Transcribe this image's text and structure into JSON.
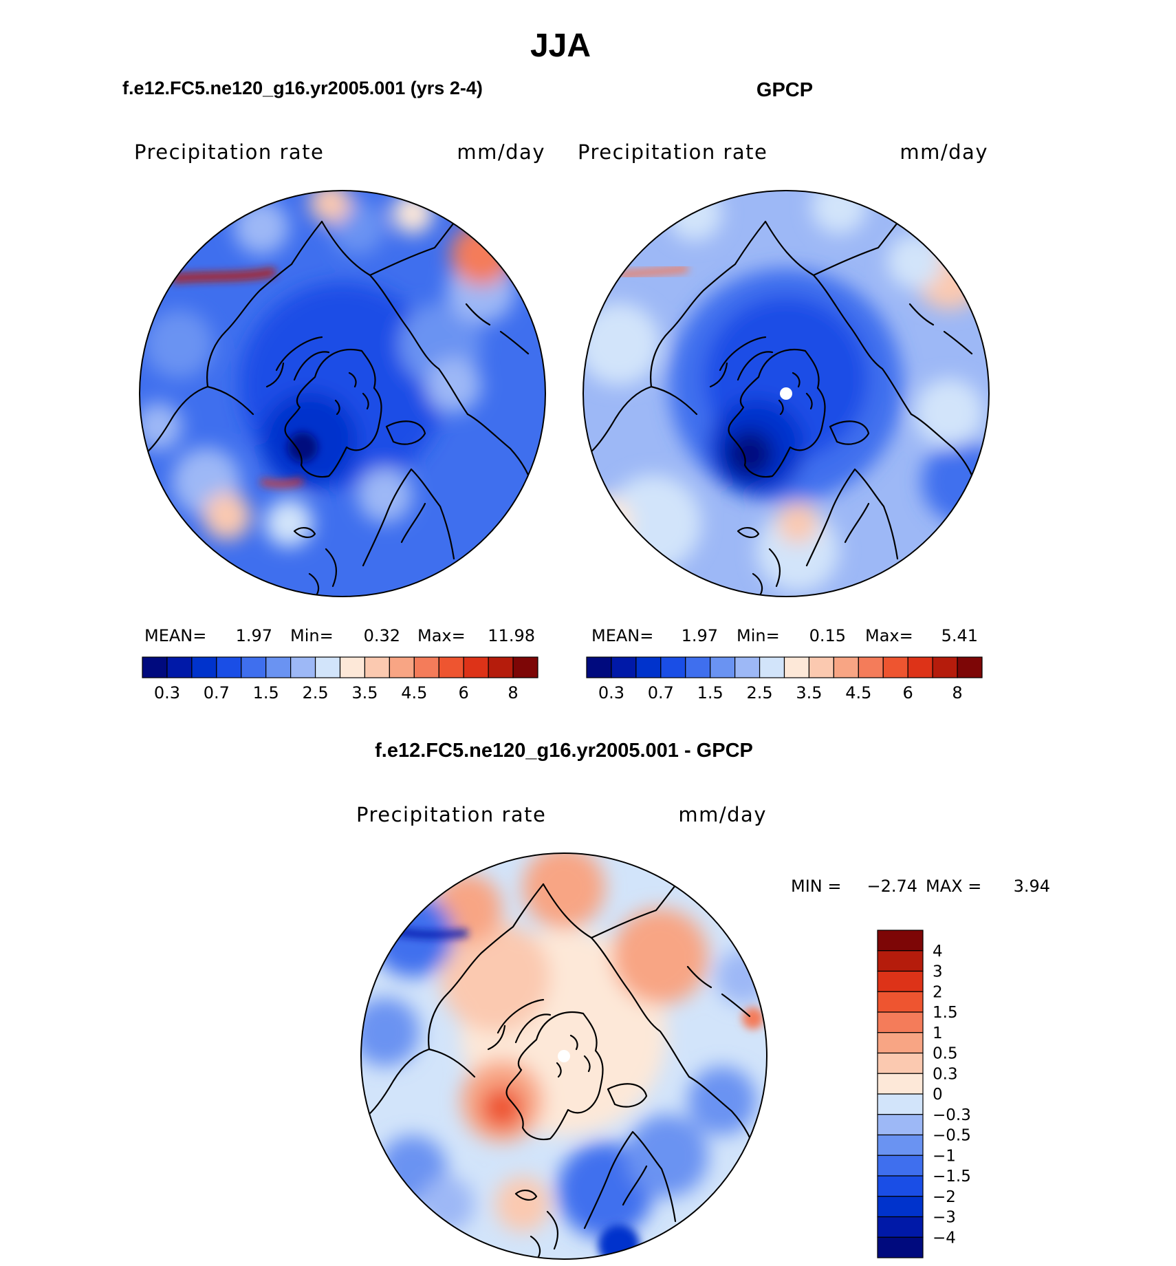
{
  "main_title": "JJA",
  "chart_data": [
    {
      "type": "heatmap",
      "projection": "north polar stereographic",
      "case_title": "f.e12.FC5.ne120_g16.yr2005.001 (yrs 2-4)",
      "variable": "Precipitation rate",
      "units": "mm/day",
      "stats": {
        "mean_label": "MEAN=",
        "mean": "1.97",
        "min_label": "Min=",
        "min": "0.32",
        "max_label": "Max=",
        "max": "11.98"
      },
      "levels": [
        "0.2",
        "0.3",
        "0.5",
        "0.7",
        "1",
        "1.5",
        "2",
        "2.5",
        "3",
        "3.5",
        "4",
        "4.5",
        "5",
        "6",
        "7",
        "8"
      ],
      "colorbar_ticks": [
        "0.3",
        "0.7",
        "1.5",
        "2.5",
        "3.5",
        "4.5",
        "6",
        "8"
      ],
      "palette": [
        "#000a7e",
        "#0019a8",
        "#0033cc",
        "#1a4ee6",
        "#3f6fee",
        "#6a93f2",
        "#9db8f6",
        "#d2e4fa",
        "#fde8d8",
        "#fbc9b0",
        "#f8a584",
        "#f47c5a",
        "#ee5530",
        "#dd3318",
        "#b51c0c",
        "#7d0606"
      ]
    },
    {
      "type": "heatmap",
      "projection": "north polar stereographic",
      "case_title": "GPCP",
      "variable": "Precipitation rate",
      "units": "mm/day",
      "stats": {
        "mean_label": "MEAN=",
        "mean": "1.97",
        "min_label": "Min=",
        "min": "0.15",
        "max_label": "Max=",
        "max": "5.41"
      },
      "levels": [
        "0.2",
        "0.3",
        "0.5",
        "0.7",
        "1",
        "1.5",
        "2",
        "2.5",
        "3",
        "3.5",
        "4",
        "4.5",
        "5",
        "6",
        "7",
        "8"
      ],
      "colorbar_ticks": [
        "0.3",
        "0.7",
        "1.5",
        "2.5",
        "3.5",
        "4.5",
        "6",
        "8"
      ],
      "palette": [
        "#000a7e",
        "#0019a8",
        "#0033cc",
        "#1a4ee6",
        "#3f6fee",
        "#6a93f2",
        "#9db8f6",
        "#d2e4fa",
        "#fde8d8",
        "#fbc9b0",
        "#f8a584",
        "#f47c5a",
        "#ee5530",
        "#dd3318",
        "#b51c0c",
        "#7d0606"
      ]
    },
    {
      "type": "heatmap",
      "projection": "north polar stereographic",
      "case_title": "f.e12.FC5.ne120_g16.yr2005.001 - GPCP",
      "variable": "Precipitation rate",
      "units": "mm/day",
      "stats": {
        "min_label": "MIN =",
        "min": "−2.74",
        "max_label": "MAX =",
        "max": "3.94"
      },
      "colorbar_ticks": [
        "4",
        "3",
        "2",
        "1.5",
        "1",
        "0.5",
        "0.3",
        "0",
        "−0.3",
        "−0.5",
        "−1",
        "−1.5",
        "−2",
        "−3",
        "−4"
      ],
      "palette": [
        "#7d0606",
        "#b51c0c",
        "#dd3318",
        "#ee5530",
        "#f47c5a",
        "#f8a584",
        "#fbc9b0",
        "#fde8d8",
        "#d2e4fa",
        "#9db8f6",
        "#6a93f2",
        "#3f6fee",
        "#1a4ee6",
        "#0033cc",
        "#0019a8",
        "#000a7e"
      ]
    }
  ]
}
